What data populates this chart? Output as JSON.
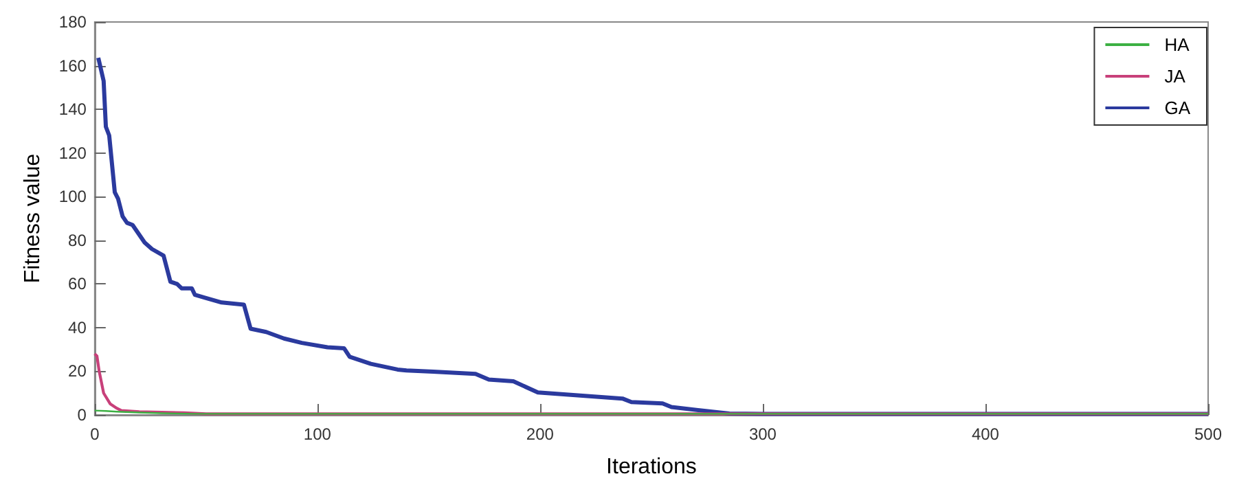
{
  "chart_data": {
    "type": "line",
    "xlabel": "Iterations",
    "ylabel": "Fitness value",
    "xlim": [
      0,
      500
    ],
    "ylim": [
      0,
      180
    ],
    "xticks": [
      0,
      100,
      200,
      300,
      400,
      500
    ],
    "yticks": [
      0,
      20,
      40,
      60,
      80,
      100,
      120,
      140,
      160,
      180
    ],
    "grid": false,
    "legend": "top right",
    "marker": "none",
    "line_style": "solid",
    "series": [
      {
        "name": "HA",
        "color": "#3cb043",
        "x": [
          0,
          5,
          10,
          20,
          30,
          45,
          60,
          500
        ],
        "values": [
          2,
          1.8,
          1.5,
          1.1,
          0.8,
          0.5,
          0.5,
          0.5
        ]
      },
      {
        "name": "JA",
        "color": "#c8407a",
        "x": [
          0,
          1,
          2,
          4,
          7,
          10,
          12,
          20,
          30,
          40,
          50,
          500
        ],
        "values": [
          28,
          27,
          20,
          10,
          5,
          3,
          2,
          1.5,
          1.2,
          1,
          0.5,
          0.5
        ]
      },
      {
        "name": "GA",
        "color": "#2b3a9e",
        "x": [
          1.6,
          4,
          5,
          6.5,
          9,
          10.5,
          12.5,
          14.5,
          17,
          22.4,
          25.7,
          30.9,
          34,
          37,
          39,
          43.6,
          45,
          50,
          57,
          67,
          70,
          77,
          85,
          93,
          104.5,
          112,
          114.5,
          124,
          136,
          140,
          152,
          171,
          177,
          188,
          199,
          237,
          241,
          255,
          259,
          285,
          300,
          500
        ],
        "values": [
          163.6,
          153,
          132,
          128,
          102,
          99,
          91,
          88,
          87,
          79,
          76,
          73,
          61,
          60,
          58,
          58,
          55,
          53.5,
          51.5,
          50.5,
          39.5,
          38,
          35,
          33,
          31,
          30.5,
          26.6,
          23.4,
          20.8,
          20.4,
          19.8,
          18.8,
          16.2,
          15.4,
          10.3,
          7.5,
          5.9,
          5.3,
          3.6,
          0.6,
          0.5,
          0.5
        ]
      }
    ]
  }
}
